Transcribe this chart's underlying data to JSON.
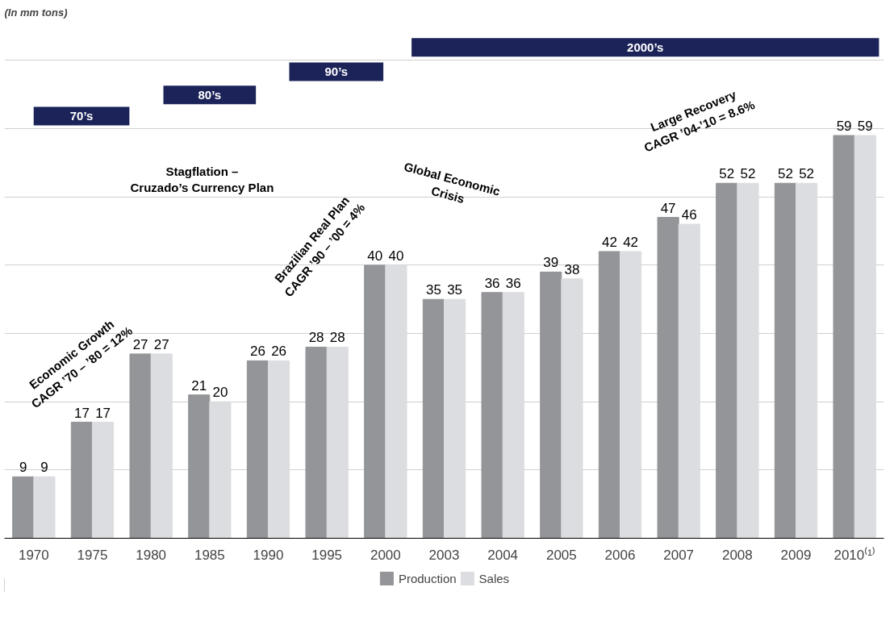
{
  "chart_data": {
    "type": "bar",
    "title": "(In mm tons)",
    "categories": [
      "1970",
      "1975",
      "1980",
      "1985",
      "1990",
      "1995",
      "2000",
      "2003",
      "2004",
      "2005",
      "2006",
      "2007",
      "2008",
      "2009",
      "2010⁽¹⁾"
    ],
    "series": [
      {
        "name": "Production",
        "color": "#939598",
        "values": [
          9,
          17,
          27,
          21,
          26,
          28,
          40,
          35,
          36,
          39,
          42,
          47,
          52,
          52,
          59
        ]
      },
      {
        "name": "Sales",
        "color": "#dcdde0",
        "values": [
          9,
          17,
          27,
          20,
          26,
          28,
          40,
          35,
          36,
          38,
          42,
          46,
          52,
          52,
          59
        ]
      }
    ],
    "yticks": [
      {
        "value": 0,
        "label": null
      },
      {
        "value": 10,
        "label": null
      },
      {
        "value": 20,
        "label": null
      },
      {
        "value": 30,
        "label": null
      },
      {
        "value": 40,
        "label": null
      },
      {
        "value": 50,
        "label": null
      },
      {
        "value": 60,
        "label": null
      },
      {
        "value": 70,
        "label": null
      }
    ],
    "tick_labels": "x",
    "grid": "y",
    "legend": "bottom",
    "data_labels": true,
    "annotations": [
      "70’s",
      "80’s",
      "90’s",
      "2000’s",
      "Economic Growth\nCAGR ’70 – ’80 = 12%",
      "Stagflation –\nCruzado’s Currency Plan",
      "Brazilian Real Plan\nCAGR ’90 – ’00 = 4%",
      "Global Economic\nCrisis",
      "Large Recovery\nCAGR ’04-’10 = 8.6%"
    ]
  }
}
